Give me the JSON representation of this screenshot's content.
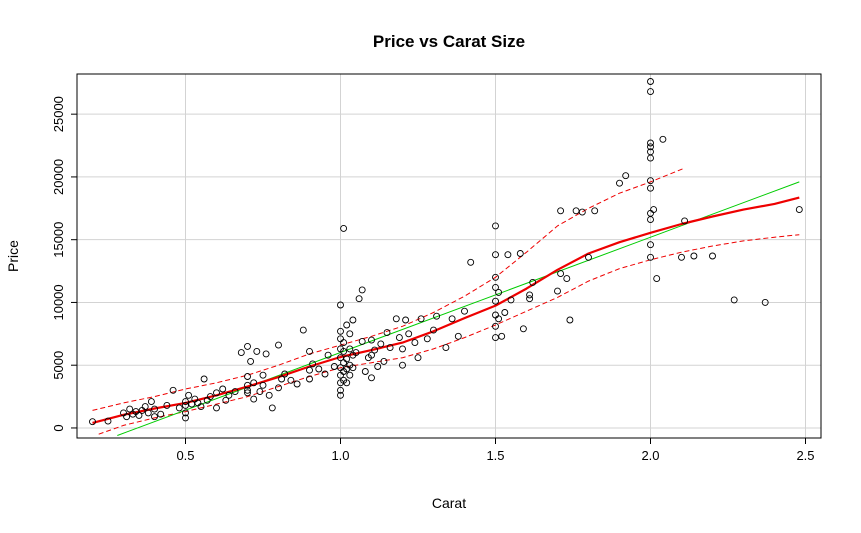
{
  "chart_data": {
    "type": "scatter",
    "title": "Price vs Carat Size",
    "xlabel": "Carat",
    "ylabel": "Price",
    "xlim": [
      0.15,
      2.55
    ],
    "ylim": [
      -800,
      28200
    ],
    "grid": true,
    "xticks": [
      0.5,
      1.0,
      1.5,
      2.0,
      2.5
    ],
    "xtick_labels": [
      "0.5",
      "1.0",
      "1.5",
      "2.0",
      "2.5"
    ],
    "yticks": [
      0,
      5000,
      10000,
      15000,
      20000,
      25000
    ],
    "ytick_labels": [
      "0",
      "5000",
      "10000",
      "15000",
      "20000",
      "25000"
    ],
    "points": [
      [
        0.2,
        500
      ],
      [
        0.25,
        550
      ],
      [
        0.3,
        1200
      ],
      [
        0.31,
        900
      ],
      [
        0.32,
        1500
      ],
      [
        0.33,
        1100
      ],
      [
        0.34,
        1300
      ],
      [
        0.35,
        1000
      ],
      [
        0.36,
        1400
      ],
      [
        0.37,
        1700
      ],
      [
        0.38,
        1200
      ],
      [
        0.39,
        2100
      ],
      [
        0.4,
        1500
      ],
      [
        0.4,
        900
      ],
      [
        0.42,
        1100
      ],
      [
        0.44,
        1800
      ],
      [
        0.46,
        3000
      ],
      [
        0.48,
        1600
      ],
      [
        0.5,
        2100
      ],
      [
        0.5,
        1800
      ],
      [
        0.5,
        1200
      ],
      [
        0.5,
        800
      ],
      [
        0.51,
        2600
      ],
      [
        0.52,
        1900
      ],
      [
        0.53,
        2300
      ],
      [
        0.54,
        2000
      ],
      [
        0.55,
        1700
      ],
      [
        0.56,
        3900
      ],
      [
        0.57,
        2200
      ],
      [
        0.58,
        2500
      ],
      [
        0.6,
        1600
      ],
      [
        0.6,
        2800
      ],
      [
        0.62,
        3100
      ],
      [
        0.63,
        2200
      ],
      [
        0.64,
        2600
      ],
      [
        0.66,
        2900
      ],
      [
        0.68,
        6000
      ],
      [
        0.7,
        4100
      ],
      [
        0.7,
        3000
      ],
      [
        0.7,
        3400
      ],
      [
        0.7,
        2800
      ],
      [
        0.7,
        6500
      ],
      [
        0.71,
        5300
      ],
      [
        0.72,
        3600
      ],
      [
        0.72,
        2300
      ],
      [
        0.73,
        6100
      ],
      [
        0.74,
        2900
      ],
      [
        0.75,
        3400
      ],
      [
        0.75,
        4200
      ],
      [
        0.76,
        5900
      ],
      [
        0.77,
        2600
      ],
      [
        0.78,
        1600
      ],
      [
        0.8,
        3200
      ],
      [
        0.8,
        6600
      ],
      [
        0.81,
        3900
      ],
      [
        0.82,
        4300
      ],
      [
        0.84,
        3800
      ],
      [
        0.86,
        3500
      ],
      [
        0.88,
        7800
      ],
      [
        0.9,
        3900
      ],
      [
        0.9,
        4600
      ],
      [
        0.9,
        6100
      ],
      [
        0.91,
        5100
      ],
      [
        0.93,
        4700
      ],
      [
        0.95,
        4300
      ],
      [
        0.96,
        5800
      ],
      [
        0.98,
        4900
      ],
      [
        1.0,
        2600
      ],
      [
        1.0,
        3000
      ],
      [
        1.0,
        3600
      ],
      [
        1.0,
        4200
      ],
      [
        1.0,
        4800
      ],
      [
        1.0,
        5600
      ],
      [
        1.0,
        6300
      ],
      [
        1.0,
        7100
      ],
      [
        1.0,
        7700
      ],
      [
        1.0,
        9800
      ],
      [
        1.01,
        3800
      ],
      [
        1.01,
        4500
      ],
      [
        1.01,
        5200
      ],
      [
        1.01,
        6100
      ],
      [
        1.01,
        6800
      ],
      [
        1.01,
        15900
      ],
      [
        1.02,
        3600
      ],
      [
        1.02,
        4700
      ],
      [
        1.02,
        5500
      ],
      [
        1.02,
        8200
      ],
      [
        1.03,
        4200
      ],
      [
        1.03,
        5000
      ],
      [
        1.03,
        6300
      ],
      [
        1.03,
        7500
      ],
      [
        1.04,
        4800
      ],
      [
        1.04,
        5800
      ],
      [
        1.04,
        8600
      ],
      [
        1.05,
        6000
      ],
      [
        1.06,
        10300
      ],
      [
        1.07,
        6900
      ],
      [
        1.07,
        11000
      ],
      [
        1.08,
        4500
      ],
      [
        1.09,
        5600
      ],
      [
        1.1,
        4000
      ],
      [
        1.1,
        5800
      ],
      [
        1.1,
        7000
      ],
      [
        1.11,
        6200
      ],
      [
        1.12,
        4900
      ],
      [
        1.13,
        6700
      ],
      [
        1.14,
        5300
      ],
      [
        1.15,
        7600
      ],
      [
        1.16,
        6400
      ],
      [
        1.18,
        8700
      ],
      [
        1.19,
        7200
      ],
      [
        1.2,
        5000
      ],
      [
        1.2,
        6300
      ],
      [
        1.21,
        8600
      ],
      [
        1.22,
        7500
      ],
      [
        1.24,
        6800
      ],
      [
        1.25,
        5600
      ],
      [
        1.26,
        8700
      ],
      [
        1.28,
        7100
      ],
      [
        1.3,
        7800
      ],
      [
        1.31,
        8900
      ],
      [
        1.34,
        6400
      ],
      [
        1.36,
        8700
      ],
      [
        1.38,
        7300
      ],
      [
        1.4,
        9300
      ],
      [
        1.42,
        13200
      ],
      [
        1.5,
        7200
      ],
      [
        1.5,
        8100
      ],
      [
        1.5,
        9000
      ],
      [
        1.5,
        10100
      ],
      [
        1.5,
        11200
      ],
      [
        1.5,
        12000
      ],
      [
        1.5,
        13800
      ],
      [
        1.5,
        16100
      ],
      [
        1.51,
        8700
      ],
      [
        1.51,
        10800
      ],
      [
        1.52,
        7300
      ],
      [
        1.53,
        9200
      ],
      [
        1.54,
        13800
      ],
      [
        1.55,
        10200
      ],
      [
        1.58,
        13900
      ],
      [
        1.59,
        7900
      ],
      [
        1.61,
        10300
      ],
      [
        1.61,
        10600
      ],
      [
        1.62,
        11600
      ],
      [
        1.7,
        10900
      ],
      [
        1.71,
        17300
      ],
      [
        1.71,
        12300
      ],
      [
        1.73,
        11900
      ],
      [
        1.74,
        8600
      ],
      [
        1.76,
        17300
      ],
      [
        1.78,
        17200
      ],
      [
        1.8,
        13600
      ],
      [
        1.82,
        17300
      ],
      [
        1.9,
        19500
      ],
      [
        1.92,
        20100
      ],
      [
        2.0,
        13600
      ],
      [
        2.0,
        14600
      ],
      [
        2.0,
        16600
      ],
      [
        2.0,
        17100
      ],
      [
        2.0,
        19100
      ],
      [
        2.0,
        19700
      ],
      [
        2.0,
        21500
      ],
      [
        2.0,
        22000
      ],
      [
        2.0,
        22400
      ],
      [
        2.0,
        22700
      ],
      [
        2.0,
        26800
      ],
      [
        2.0,
        27600
      ],
      [
        2.01,
        17400
      ],
      [
        2.02,
        11900
      ],
      [
        2.04,
        23000
      ],
      [
        2.1,
        13600
      ],
      [
        2.11,
        16500
      ],
      [
        2.14,
        13700
      ],
      [
        2.2,
        13700
      ],
      [
        2.27,
        10200
      ],
      [
        2.37,
        10000
      ],
      [
        2.48,
        17400
      ]
    ],
    "fit_linear": [
      [
        0.28,
        -600
      ],
      [
        2.48,
        19600
      ]
    ],
    "fit_smooth": [
      [
        0.2,
        400
      ],
      [
        0.3,
        1050
      ],
      [
        0.4,
        1550
      ],
      [
        0.5,
        2000
      ],
      [
        0.6,
        2600
      ],
      [
        0.7,
        3300
      ],
      [
        0.8,
        4050
      ],
      [
        0.9,
        4900
      ],
      [
        1.0,
        5650
      ],
      [
        1.1,
        6200
      ],
      [
        1.2,
        6800
      ],
      [
        1.3,
        7700
      ],
      [
        1.4,
        8750
      ],
      [
        1.5,
        9750
      ],
      [
        1.6,
        11100
      ],
      [
        1.7,
        12600
      ],
      [
        1.8,
        13900
      ],
      [
        1.9,
        14800
      ],
      [
        2.0,
        15550
      ],
      [
        2.1,
        16250
      ],
      [
        2.2,
        16850
      ],
      [
        2.3,
        17400
      ],
      [
        2.4,
        17850
      ],
      [
        2.48,
        18350
      ]
    ],
    "band_upper": [
      [
        0.2,
        1400
      ],
      [
        0.3,
        2000
      ],
      [
        0.4,
        2500
      ],
      [
        0.5,
        3100
      ],
      [
        0.6,
        3600
      ],
      [
        0.7,
        4200
      ],
      [
        0.8,
        5000
      ],
      [
        0.9,
        5900
      ],
      [
        1.0,
        6600
      ],
      [
        1.1,
        7300
      ],
      [
        1.2,
        8100
      ],
      [
        1.3,
        9200
      ],
      [
        1.4,
        10500
      ],
      [
        1.5,
        12000
      ],
      [
        1.6,
        14000
      ],
      [
        1.7,
        16100
      ],
      [
        1.8,
        17500
      ],
      [
        1.9,
        18700
      ],
      [
        2.0,
        19600
      ],
      [
        2.11,
        20700
      ]
    ],
    "band_lower": [
      [
        0.22,
        -500
      ],
      [
        0.3,
        200
      ],
      [
        0.4,
        800
      ],
      [
        0.5,
        1300
      ],
      [
        0.6,
        1900
      ],
      [
        0.7,
        2500
      ],
      [
        0.8,
        3300
      ],
      [
        0.9,
        4100
      ],
      [
        1.0,
        4800
      ],
      [
        1.1,
        5200
      ],
      [
        1.2,
        5600
      ],
      [
        1.3,
        6300
      ],
      [
        1.4,
        7200
      ],
      [
        1.5,
        8200
      ],
      [
        1.6,
        9300
      ],
      [
        1.7,
        10400
      ],
      [
        1.8,
        11700
      ],
      [
        1.9,
        12700
      ],
      [
        2.0,
        13400
      ],
      [
        2.1,
        14000
      ],
      [
        2.2,
        14500
      ],
      [
        2.3,
        14900
      ],
      [
        2.4,
        15200
      ],
      [
        2.48,
        15400
      ]
    ],
    "colors": {
      "points": "#000000",
      "linear_fit": "#00cc00",
      "smooth_fit": "#ee0000",
      "band": "#ee0000",
      "grid": "#d3d3d3"
    }
  }
}
